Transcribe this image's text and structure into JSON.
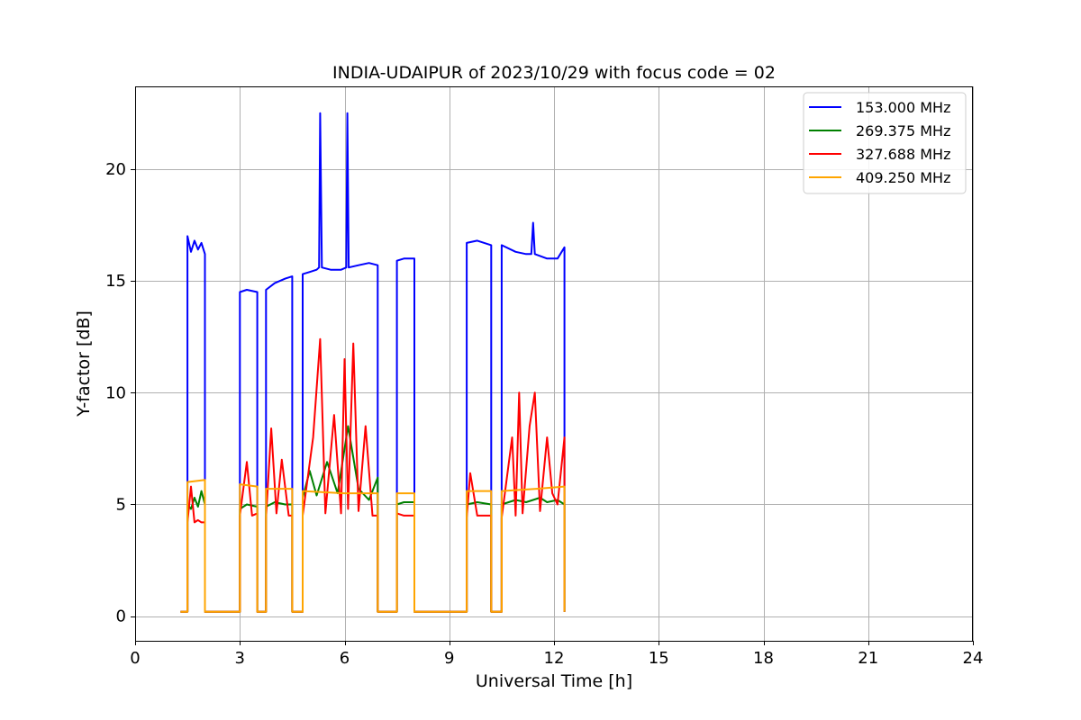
{
  "chart_data": {
    "type": "line",
    "title": "INDIA-UDAIPUR of 2023/10/29 with focus code = 02",
    "xlabel": "Universal Time [h]",
    "ylabel": "Y-factor [dB]",
    "xlim": [
      0,
      24
    ],
    "ylim": [
      -1.1,
      23.7
    ],
    "xticks": [
      0,
      3,
      6,
      9,
      12,
      15,
      18,
      21,
      24
    ],
    "yticks": [
      0,
      5,
      10,
      15,
      20
    ],
    "grid": true,
    "legend_position": "top-right",
    "series": [
      {
        "name": "153.000 MHz",
        "color": "#0000ff",
        "points": [
          [
            1.3,
            0.2
          ],
          [
            1.5,
            0.2
          ],
          [
            1.5,
            17.0
          ],
          [
            1.6,
            16.3
          ],
          [
            1.7,
            16.8
          ],
          [
            1.8,
            16.4
          ],
          [
            1.9,
            16.7
          ],
          [
            2.0,
            16.2
          ],
          [
            2.0,
            0.2
          ],
          [
            3.0,
            0.2
          ],
          [
            3.0,
            14.5
          ],
          [
            3.2,
            14.6
          ],
          [
            3.5,
            14.5
          ],
          [
            3.5,
            0.2
          ],
          [
            3.75,
            0.2
          ],
          [
            3.75,
            14.6
          ],
          [
            4.0,
            14.9
          ],
          [
            4.3,
            15.1
          ],
          [
            4.5,
            15.2
          ],
          [
            4.5,
            0.2
          ],
          [
            4.8,
            0.2
          ],
          [
            4.8,
            15.3
          ],
          [
            5.0,
            15.4
          ],
          [
            5.2,
            15.5
          ],
          [
            5.27,
            15.6
          ],
          [
            5.3,
            22.5
          ],
          [
            5.35,
            15.6
          ],
          [
            5.6,
            15.5
          ],
          [
            5.9,
            15.5
          ],
          [
            6.05,
            15.6
          ],
          [
            6.08,
            22.5
          ],
          [
            6.12,
            15.6
          ],
          [
            6.4,
            15.7
          ],
          [
            6.7,
            15.8
          ],
          [
            6.95,
            15.7
          ],
          [
            6.95,
            0.2
          ],
          [
            7.5,
            0.2
          ],
          [
            7.5,
            15.9
          ],
          [
            7.7,
            16.0
          ],
          [
            8.0,
            16.0
          ],
          [
            8.0,
            0.2
          ],
          [
            9.5,
            0.2
          ],
          [
            9.5,
            16.7
          ],
          [
            9.8,
            16.8
          ],
          [
            10.2,
            16.6
          ],
          [
            10.2,
            0.2
          ],
          [
            10.5,
            0.2
          ],
          [
            10.5,
            16.6
          ],
          [
            10.9,
            16.3
          ],
          [
            11.2,
            16.2
          ],
          [
            11.35,
            16.2
          ],
          [
            11.4,
            17.6
          ],
          [
            11.45,
            16.2
          ],
          [
            11.8,
            16.0
          ],
          [
            12.1,
            16.0
          ],
          [
            12.3,
            16.5
          ],
          [
            12.3,
            0.2
          ]
        ]
      },
      {
        "name": "269.375 MHz",
        "color": "#008000",
        "points": [
          [
            1.3,
            0.2
          ],
          [
            1.5,
            0.2
          ],
          [
            1.5,
            5.0
          ],
          [
            1.6,
            4.8
          ],
          [
            1.7,
            5.3
          ],
          [
            1.8,
            4.9
          ],
          [
            1.9,
            5.6
          ],
          [
            2.0,
            5.0
          ],
          [
            2.0,
            0.2
          ],
          [
            3.0,
            0.2
          ],
          [
            3.0,
            4.8
          ],
          [
            3.2,
            5.0
          ],
          [
            3.5,
            4.9
          ],
          [
            3.5,
            0.2
          ],
          [
            3.75,
            0.2
          ],
          [
            3.75,
            4.9
          ],
          [
            4.0,
            5.1
          ],
          [
            4.3,
            5.0
          ],
          [
            4.5,
            5.0
          ],
          [
            4.5,
            0.2
          ],
          [
            4.8,
            0.2
          ],
          [
            4.8,
            5.3
          ],
          [
            5.0,
            6.5
          ],
          [
            5.2,
            5.4
          ],
          [
            5.5,
            6.9
          ],
          [
            5.8,
            5.5
          ],
          [
            6.1,
            8.5
          ],
          [
            6.4,
            5.7
          ],
          [
            6.7,
            5.2
          ],
          [
            6.95,
            6.2
          ],
          [
            6.95,
            0.2
          ],
          [
            7.5,
            0.2
          ],
          [
            7.5,
            5.0
          ],
          [
            7.7,
            5.1
          ],
          [
            8.0,
            5.1
          ],
          [
            8.0,
            0.2
          ],
          [
            9.5,
            0.2
          ],
          [
            9.5,
            5.0
          ],
          [
            9.8,
            5.1
          ],
          [
            10.2,
            5.0
          ],
          [
            10.2,
            0.2
          ],
          [
            10.5,
            0.2
          ],
          [
            10.5,
            5.0
          ],
          [
            10.9,
            5.2
          ],
          [
            11.2,
            5.1
          ],
          [
            11.6,
            5.3
          ],
          [
            11.8,
            5.1
          ],
          [
            12.1,
            5.2
          ],
          [
            12.3,
            5.0
          ],
          [
            12.3,
            0.2
          ]
        ]
      },
      {
        "name": "327.688 MHz",
        "color": "#ff0000",
        "points": [
          [
            1.3,
            0.2
          ],
          [
            1.5,
            0.2
          ],
          [
            1.5,
            4.2
          ],
          [
            1.6,
            5.8
          ],
          [
            1.7,
            4.2
          ],
          [
            1.8,
            4.3
          ],
          [
            1.9,
            4.2
          ],
          [
            2.0,
            4.2
          ],
          [
            2.0,
            0.2
          ],
          [
            3.0,
            0.2
          ],
          [
            3.0,
            4.5
          ],
          [
            3.2,
            6.9
          ],
          [
            3.35,
            4.5
          ],
          [
            3.5,
            4.6
          ],
          [
            3.5,
            0.2
          ],
          [
            3.75,
            0.2
          ],
          [
            3.75,
            4.4
          ],
          [
            3.9,
            8.4
          ],
          [
            4.05,
            4.6
          ],
          [
            4.2,
            7.0
          ],
          [
            4.4,
            4.5
          ],
          [
            4.5,
            4.5
          ],
          [
            4.5,
            0.2
          ],
          [
            4.8,
            0.2
          ],
          [
            4.8,
            4.5
          ],
          [
            5.1,
            8.0
          ],
          [
            5.3,
            12.4
          ],
          [
            5.45,
            4.6
          ],
          [
            5.7,
            9.0
          ],
          [
            5.9,
            4.6
          ],
          [
            6.0,
            11.5
          ],
          [
            6.1,
            4.8
          ],
          [
            6.25,
            12.2
          ],
          [
            6.4,
            4.7
          ],
          [
            6.6,
            8.5
          ],
          [
            6.8,
            4.5
          ],
          [
            6.95,
            4.5
          ],
          [
            6.95,
            0.2
          ],
          [
            7.5,
            0.2
          ],
          [
            7.5,
            4.6
          ],
          [
            7.7,
            4.5
          ],
          [
            8.0,
            4.5
          ],
          [
            8.0,
            0.2
          ],
          [
            9.5,
            0.2
          ],
          [
            9.5,
            4.4
          ],
          [
            9.6,
            6.4
          ],
          [
            9.8,
            4.5
          ],
          [
            10.2,
            4.5
          ],
          [
            10.2,
            0.2
          ],
          [
            10.5,
            0.2
          ],
          [
            10.5,
            4.4
          ],
          [
            10.8,
            8.0
          ],
          [
            10.9,
            4.5
          ],
          [
            11.0,
            10.0
          ],
          [
            11.1,
            4.6
          ],
          [
            11.3,
            8.5
          ],
          [
            11.45,
            10.0
          ],
          [
            11.6,
            4.7
          ],
          [
            11.8,
            8.0
          ],
          [
            11.95,
            5.5
          ],
          [
            12.1,
            5.0
          ],
          [
            12.3,
            8.0
          ],
          [
            12.3,
            0.2
          ]
        ]
      },
      {
        "name": "409.250 MHz",
        "color": "#ffa500",
        "points": [
          [
            1.3,
            0.2
          ],
          [
            1.5,
            0.2
          ],
          [
            1.5,
            6.0
          ],
          [
            2.0,
            6.1
          ],
          [
            2.0,
            0.2
          ],
          [
            3.0,
            0.2
          ],
          [
            3.0,
            5.9
          ],
          [
            3.5,
            5.8
          ],
          [
            3.5,
            0.2
          ],
          [
            3.75,
            0.2
          ],
          [
            3.75,
            5.7
          ],
          [
            4.5,
            5.7
          ],
          [
            4.5,
            0.2
          ],
          [
            4.8,
            0.2
          ],
          [
            4.8,
            5.6
          ],
          [
            6.0,
            5.5
          ],
          [
            6.95,
            5.5
          ],
          [
            6.95,
            0.2
          ],
          [
            7.5,
            0.2
          ],
          [
            7.5,
            5.5
          ],
          [
            8.0,
            5.5
          ],
          [
            8.0,
            0.2
          ],
          [
            9.5,
            0.2
          ],
          [
            9.5,
            5.6
          ],
          [
            10.2,
            5.6
          ],
          [
            10.2,
            0.2
          ],
          [
            10.5,
            0.2
          ],
          [
            10.5,
            5.6
          ],
          [
            11.5,
            5.7
          ],
          [
            12.3,
            5.8
          ],
          [
            12.3,
            0.2
          ]
        ]
      }
    ]
  }
}
